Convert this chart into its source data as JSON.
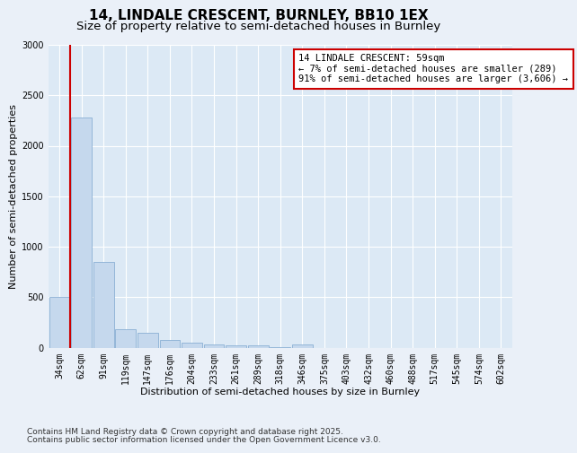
{
  "title1": "14, LINDALE CRESCENT, BURNLEY, BB10 1EX",
  "title2": "Size of property relative to semi-detached houses in Burnley",
  "xlabel": "Distribution of semi-detached houses by size in Burnley",
  "ylabel": "Number of semi-detached properties",
  "categories": [
    "34sqm",
    "62sqm",
    "91sqm",
    "119sqm",
    "147sqm",
    "176sqm",
    "204sqm",
    "233sqm",
    "261sqm",
    "289sqm",
    "318sqm",
    "346sqm",
    "375sqm",
    "403sqm",
    "432sqm",
    "460sqm",
    "488sqm",
    "517sqm",
    "545sqm",
    "574sqm",
    "602sqm"
  ],
  "values": [
    500,
    2280,
    850,
    180,
    150,
    80,
    50,
    30,
    20,
    20,
    5,
    30,
    0,
    0,
    0,
    0,
    0,
    0,
    0,
    0,
    0
  ],
  "bar_color": "#c5d8ed",
  "bar_edge_color": "#8aafd4",
  "vline_color": "#cc0000",
  "annotation_title": "14 LINDALE CRESCENT: 59sqm",
  "annotation_line1": "← 7% of semi-detached houses are smaller (289)",
  "annotation_line2": "91% of semi-detached houses are larger (3,606) →",
  "annotation_box_edge_color": "#cc0000",
  "ylim": [
    0,
    3000
  ],
  "yticks": [
    0,
    500,
    1000,
    1500,
    2000,
    2500,
    3000
  ],
  "plot_bg_color": "#dce9f5",
  "fig_bg_color": "#eaf0f8",
  "footer1": "Contains HM Land Registry data © Crown copyright and database right 2025.",
  "footer2": "Contains public sector information licensed under the Open Government Licence v3.0.",
  "title_fontsize": 11,
  "subtitle_fontsize": 9.5,
  "axis_label_fontsize": 8,
  "tick_fontsize": 7,
  "annotation_fontsize": 7.5,
  "footer_fontsize": 6.5
}
